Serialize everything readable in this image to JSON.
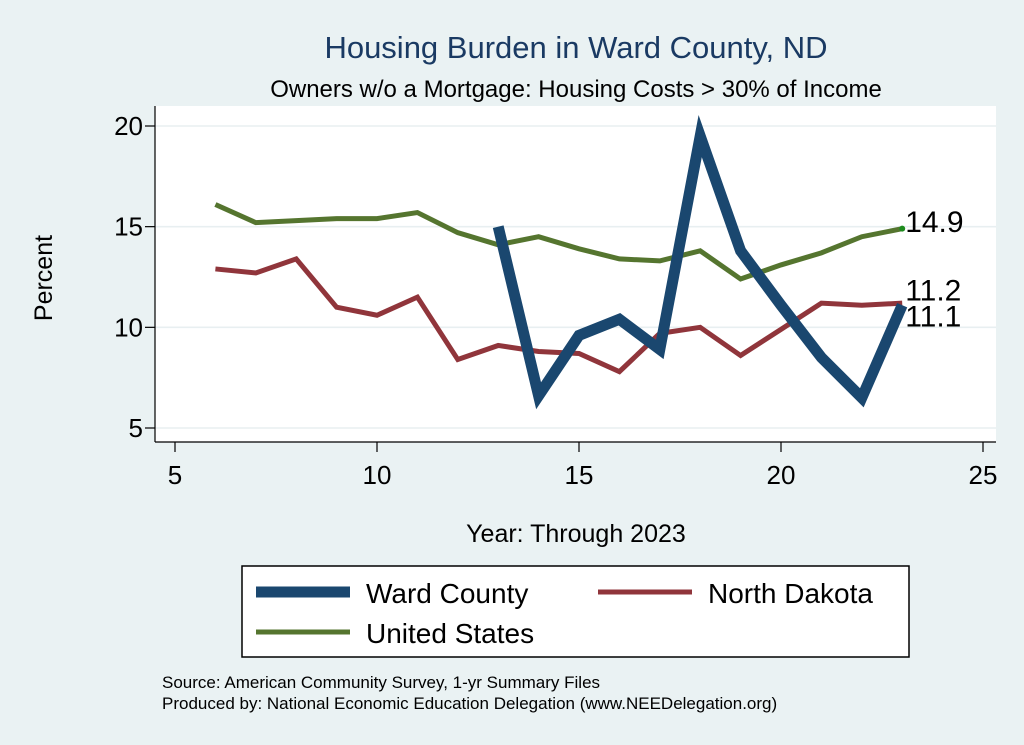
{
  "chart_data": {
    "type": "line",
    "title": "Housing Burden in Ward County, ND",
    "subtitle": "Owners w/o a Mortgage: Housing Costs > 30% of Income",
    "xlabel": "Year: Through 2023",
    "ylabel": "Percent",
    "xlim": [
      5,
      25
    ],
    "ylim": [
      5,
      20
    ],
    "xticks": [
      5,
      10,
      15,
      20,
      25
    ],
    "yticks": [
      5,
      10,
      15,
      20
    ],
    "grid": true,
    "legend_position": "bottom",
    "series": [
      {
        "name": "Ward County",
        "color": "#1a476f",
        "x": [
          13,
          14,
          15,
          16,
          17,
          18,
          19,
          20,
          21,
          22,
          23
        ],
        "y": [
          15.0,
          6.6,
          9.6,
          10.4,
          8.9,
          19.5,
          13.8,
          11.1,
          8.5,
          6.5,
          11.1
        ],
        "end_label": "11.1"
      },
      {
        "name": "North Dakota",
        "color": "#90353b",
        "x": [
          6,
          7,
          8,
          9,
          10,
          11,
          12,
          13,
          14,
          15,
          16,
          17,
          18,
          19,
          20,
          21,
          22,
          23
        ],
        "y": [
          12.9,
          12.7,
          13.4,
          11.0,
          10.6,
          11.5,
          8.4,
          9.1,
          8.8,
          8.7,
          7.8,
          9.7,
          10.0,
          8.6,
          9.9,
          11.2,
          11.1,
          11.2
        ],
        "end_label": "11.2"
      },
      {
        "name": "United States",
        "color": "#55752f",
        "x": [
          6,
          7,
          8,
          9,
          10,
          11,
          12,
          13,
          14,
          15,
          16,
          17,
          18,
          19,
          20,
          21,
          22,
          23
        ],
        "y": [
          16.1,
          15.2,
          15.3,
          15.4,
          15.4,
          15.7,
          14.7,
          14.1,
          14.5,
          13.9,
          13.4,
          13.3,
          13.8,
          12.4,
          13.1,
          13.7,
          14.5,
          14.9
        ],
        "end_label": "14.9"
      }
    ],
    "notes": [
      "Source: American Community Survey, 1-yr Summary Files",
      "Produced by: National Economic Education Delegation (www.NEEDelegation.org)"
    ]
  }
}
